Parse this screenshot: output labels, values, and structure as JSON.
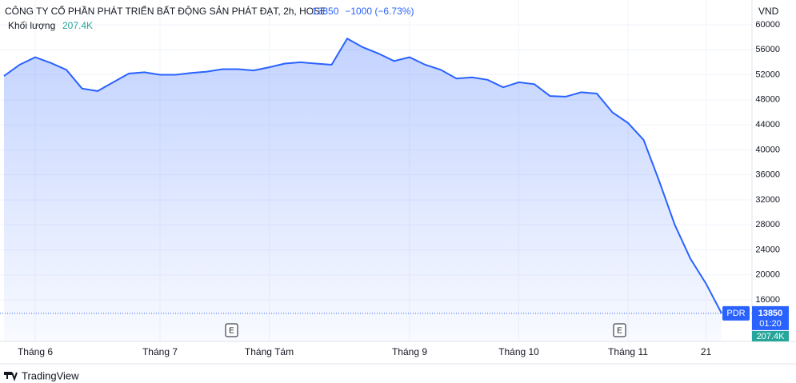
{
  "chart_data": {
    "type": "line",
    "title": "CÔNG TY CỔ PHẦN PHÁT TRIỂN BẤT ĐỘNG SẢN PHÁT ĐẠT, 2h, HOSE",
    "last_price": "13850",
    "change": "−1000 (−6.73%)",
    "currency": "VND",
    "volume_label": "Khối lượng",
    "volume_value": "207.4K",
    "symbol": "PDR",
    "countdown": "01:20",
    "brand": "TradingView",
    "event_marker": "E",
    "categories": [
      null,
      null,
      "Tháng 6",
      null,
      null,
      null,
      null,
      null,
      null,
      null,
      "Tháng 7",
      null,
      null,
      null,
      null,
      null,
      null,
      "Tháng Tám",
      null,
      null,
      null,
      null,
      null,
      null,
      null,
      null,
      "Tháng 9",
      null,
      null,
      null,
      null,
      null,
      null,
      "Tháng 10",
      null,
      null,
      null,
      null,
      null,
      null,
      "Tháng 11",
      null,
      null,
      null,
      null,
      "21",
      null
    ],
    "series": [
      {
        "name": "PDR",
        "color": "#2962ff",
        "values": [
          51800,
          53600,
          54800,
          53900,
          52800,
          49800,
          49400,
          50800,
          52200,
          52400,
          52000,
          52000,
          52300,
          52500,
          52900,
          52900,
          52700,
          53200,
          53800,
          54000,
          53800,
          53600,
          57800,
          56400,
          55400,
          54200,
          54800,
          53600,
          52800,
          51400,
          51600,
          51200,
          50000,
          50800,
          50500,
          48600,
          48500,
          49200,
          49000,
          46000,
          44300,
          41600,
          35000,
          28000,
          22600,
          18600,
          13850
        ]
      }
    ],
    "ylim": [
      9360,
      63960
    ],
    "yticks": [
      16000,
      20000,
      24000,
      28000,
      32000,
      36000,
      40000,
      44000,
      48000,
      52000,
      56000,
      60000
    ],
    "grid": true
  }
}
